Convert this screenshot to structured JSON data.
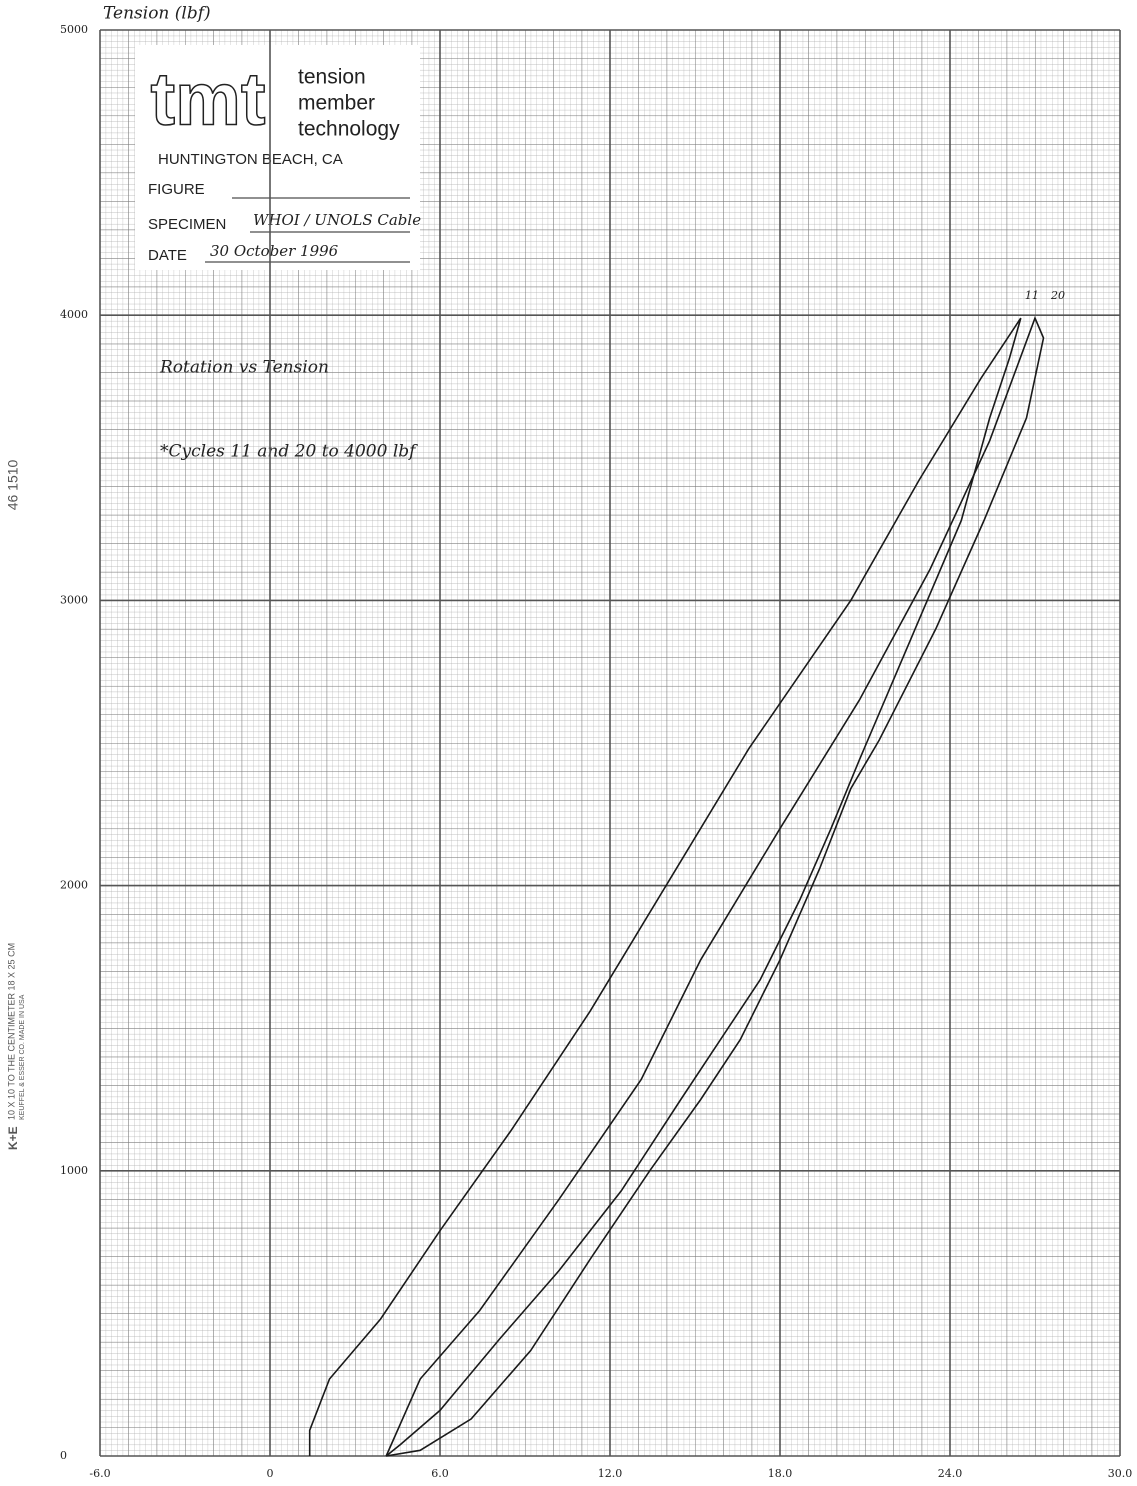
{
  "chart_data": {
    "type": "line",
    "y_label": "Tension (lbf)",
    "annotations": [
      "Rotation vs Tension",
      "*Cycles 11 and 20 to 4000 lbf"
    ],
    "xlim": [
      -6,
      30
    ],
    "ylim": [
      0,
      5000
    ],
    "xticks": [
      {
        "value": -6,
        "label": "-6.0"
      },
      0,
      {
        "value": 6,
        "label": "6.0"
      },
      {
        "value": 12,
        "label": "12.0"
      },
      {
        "value": 18,
        "label": "18.0"
      },
      {
        "value": 24,
        "label": "24.0"
      },
      {
        "value": 30,
        "label": "30.0"
      }
    ],
    "yticks": [
      0,
      1000,
      2000,
      3000,
      4000,
      5000
    ],
    "grid": true,
    "series": [
      {
        "name": "11",
        "color": "#1a1a1a",
        "x": [
          1.4,
          1.4,
          2.1,
          3.9,
          6.0,
          8.5,
          11.3,
          14.1,
          16.9,
          20.5,
          22.9,
          25.1,
          26.5,
          26.1,
          25.4,
          24.4,
          22.6,
          20.8,
          19.8,
          18.7,
          17.3,
          15.9,
          14.5,
          12.4,
          10.2,
          8.1,
          6.0,
          4.6,
          4.1
        ],
        "values": [
          0,
          90,
          270,
          480,
          790,
          1140,
          1560,
          2020,
          2480,
          3000,
          3420,
          3780,
          3990,
          3850,
          3640,
          3280,
          2860,
          2440,
          2200,
          1950,
          1670,
          1460,
          1250,
          930,
          650,
          410,
          160,
          40,
          0
        ]
      },
      {
        "name": "20",
        "color": "#1a1a1a",
        "x": [
          4.1,
          5.3,
          7.4,
          10.2,
          13.1,
          15.2,
          18.0,
          20.8,
          23.3,
          25.4,
          27.0,
          27.3,
          26.7,
          25.2,
          23.5,
          21.5,
          20.5,
          19.4,
          18.0,
          16.6,
          15.2,
          13.4,
          11.3,
          9.2,
          7.1,
          5.3,
          4.1
        ],
        "values": [
          0,
          270,
          510,
          900,
          1320,
          1740,
          2200,
          2650,
          3110,
          3560,
          3990,
          3920,
          3640,
          3280,
          2900,
          2510,
          2340,
          2060,
          1740,
          1460,
          1250,
          1000,
          690,
          370,
          130,
          20,
          0
        ]
      }
    ]
  },
  "stamp": {
    "logo": "tmt",
    "company": [
      "tension",
      "member",
      "technology"
    ],
    "location": "HUNTINGTON BEACH, CA",
    "figure_label": "FIGURE",
    "specimen_label": "SPECIMEN",
    "specimen": "WHOI / UNOLS Cable",
    "date_label": "DATE",
    "date": "30 October 1996"
  },
  "paper": {
    "code": "46 1510",
    "brand": "K+E",
    "ruling": "10 X 10 TO THE CENTIMETER  18 X 25 CM",
    "maker": "KEUFFEL & ESSER CO. MADE IN USA"
  }
}
